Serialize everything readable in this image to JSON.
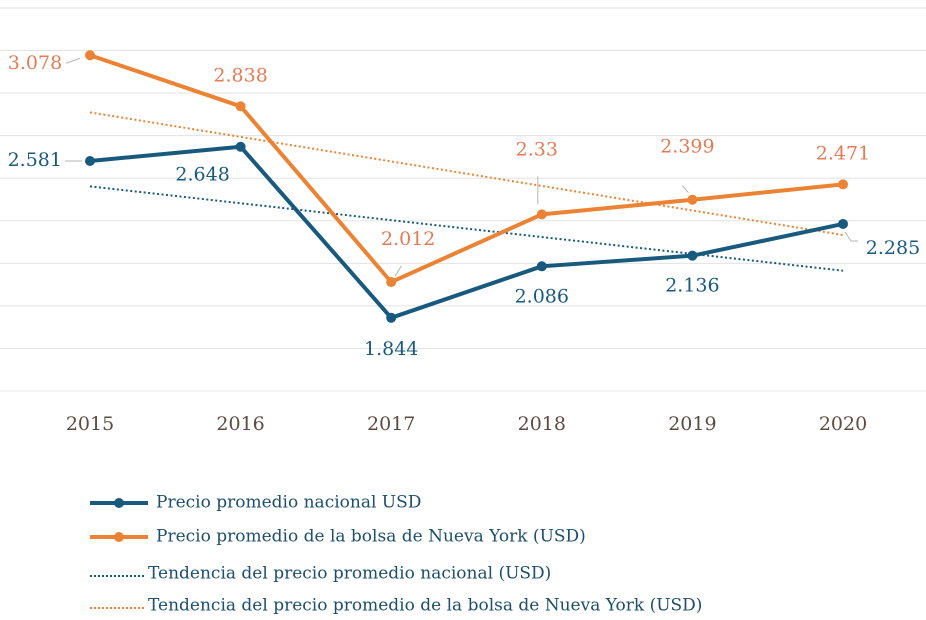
{
  "chart_data": {
    "type": "line",
    "categories": [
      "2015",
      "2016",
      "2017",
      "2018",
      "2019",
      "2020"
    ],
    "series": [
      {
        "name": "Precio promedio nacional USD",
        "color": "#185a7d",
        "label_color": "#185a7d",
        "values": [
          2.581,
          2.648,
          1.844,
          2.086,
          2.136,
          2.285
        ]
      },
      {
        "name": "Precio promedio de la bolsa de Nueva York (USD)",
        "color": "#ec8334",
        "label_color": "#e47b56",
        "values": [
          3.078,
          2.838,
          2.012,
          2.33,
          2.399,
          2.471
        ]
      }
    ],
    "trendlines": [
      {
        "name": "Tendencia del precio promedio nacional (USD)",
        "color": "#185a7d",
        "trend_of": 0
      },
      {
        "name": "Tendencia del precio promedio de la bolsa de Nueva York (USD)",
        "color": "#ec8334",
        "trend_of": 1
      }
    ],
    "ylim": [
      1.5,
      3.3
    ],
    "yticks": [
      1.5,
      1.7,
      1.9,
      2.1,
      2.3,
      2.5,
      2.7,
      2.9,
      3.1,
      3.3
    ],
    "grid": true,
    "show_ytick_labels": false
  }
}
